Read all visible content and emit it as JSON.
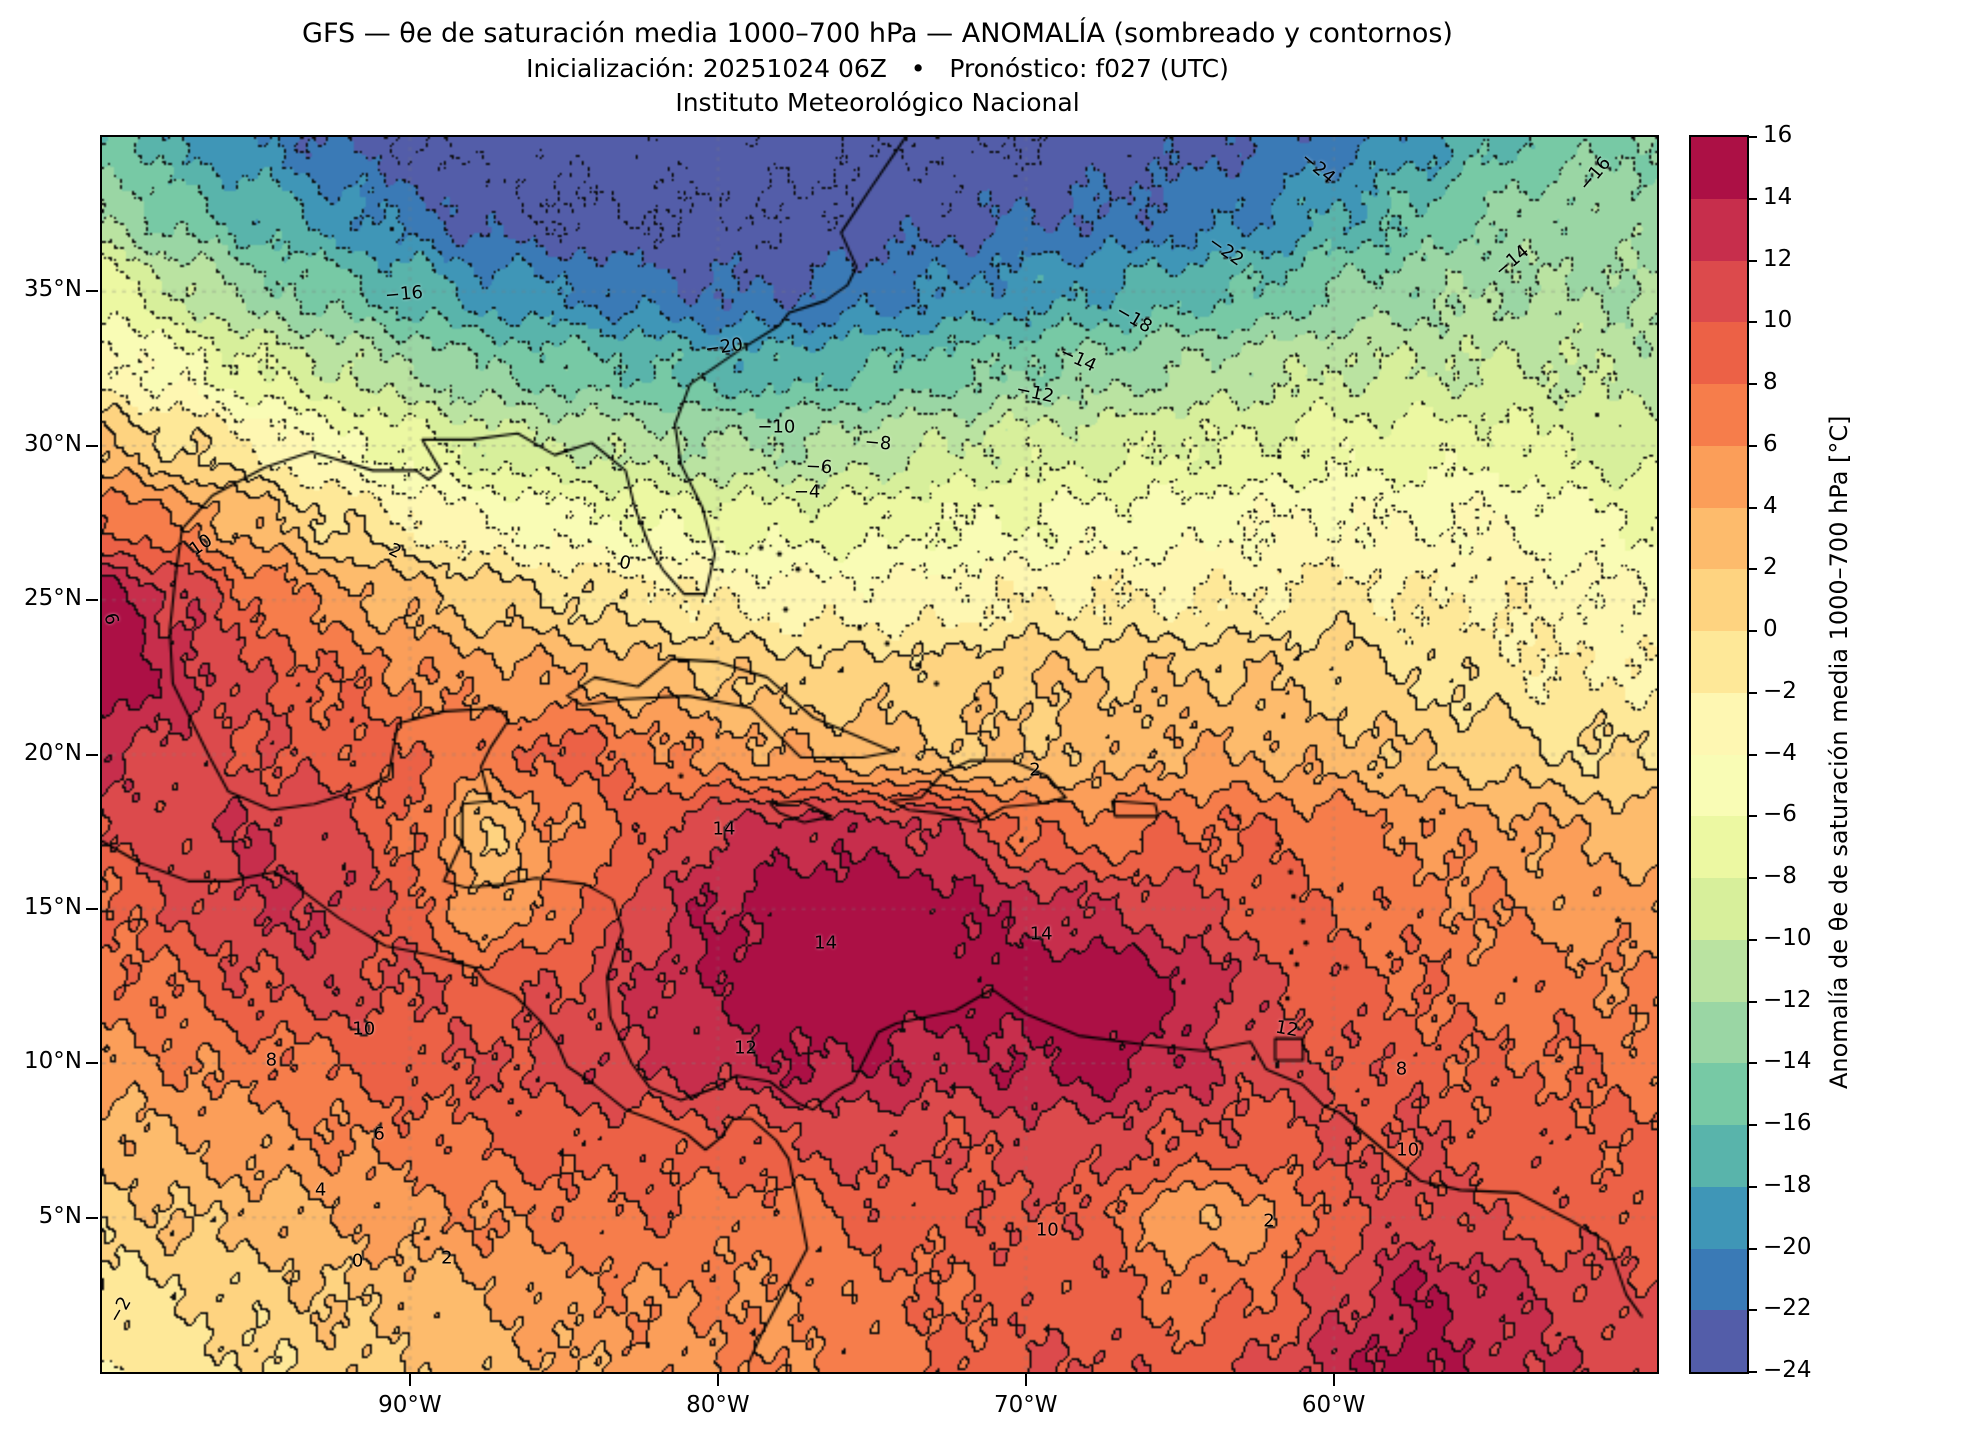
{
  "title": {
    "line1": "GFS — θe de saturación media 1000–700 hPa — ANOMALÍA (sombreado y contornos)",
    "line2": "Inicialización: 20251024 06Z   •   Pronóstico: f027 (UTC)",
    "line3": "Instituto Meteorológico Nacional"
  },
  "axes": {
    "lat_ticks": [
      {
        "value": 35,
        "label": "35°N"
      },
      {
        "value": 30,
        "label": "30°N"
      },
      {
        "value": 25,
        "label": "25°N"
      },
      {
        "value": 20,
        "label": "20°N"
      },
      {
        "value": 15,
        "label": "15°N"
      },
      {
        "value": 10,
        "label": "10°N"
      },
      {
        "value": 5,
        "label": "5°N"
      }
    ],
    "lon_ticks": [
      {
        "value": -90,
        "label": "90°W"
      },
      {
        "value": -80,
        "label": "80°W"
      },
      {
        "value": -70,
        "label": "70°W"
      },
      {
        "value": -60,
        "label": "60°W"
      }
    ]
  },
  "colorbar": {
    "label": "Anomalía de θe de saturación media 1000–700 hPa [°C]",
    "tick_labels": [
      "16",
      "14",
      "12",
      "10",
      "8",
      "6",
      "4",
      "2",
      "0",
      "−2",
      "−4",
      "−6",
      "−8",
      "−10",
      "−12",
      "−14",
      "−16",
      "−18",
      "−20",
      "−22",
      "−24"
    ],
    "levels": [
      -24,
      -22,
      -20,
      -18,
      -16,
      -14,
      -12,
      -10,
      -8,
      -6,
      -4,
      -2,
      0,
      2,
      4,
      6,
      8,
      10,
      12,
      14,
      16
    ],
    "bin_colors": [
      "#535da9",
      "#3a7ab6",
      "#3f96b7",
      "#59b4ab",
      "#77c9a5",
      "#9ad6a4",
      "#bae3a1",
      "#d7ef9b",
      "#ecf8a2",
      "#f9fcb5",
      "#fef7b2",
      "#fee898",
      "#fed380",
      "#fdbb6c",
      "#fb9e59",
      "#f67d4b",
      "#ec6146",
      "#dc4a4c",
      "#c72e4c",
      "#ac1045"
    ]
  },
  "chart_data": {
    "type": "heatmap",
    "title": "GFS — θe de saturación media 1000–700 hPa — ANOMALÍA (sombreado y contornos)",
    "units": "°C",
    "contour_interval": 2,
    "negative_contours_dotted": true,
    "lon_range": [
      -100,
      -49.5
    ],
    "lat_range": [
      0,
      40
    ],
    "grid_lon": [
      -100,
      -97.5,
      -95,
      -92.5,
      -90,
      -87.5,
      -85,
      -82.5,
      -80,
      -77.5,
      -75,
      -72.5,
      -70,
      -67.5,
      -65,
      -62.5,
      -60,
      -57.5,
      -55,
      -52.5,
      -50
    ],
    "grid_lat": [
      40,
      37.5,
      35,
      32.5,
      30,
      27.5,
      25,
      22.5,
      20,
      17.5,
      15,
      12.5,
      10,
      7.5,
      5,
      2.5,
      0
    ],
    "anomaly_grid": [
      [
        -15,
        -18,
        -20,
        -22,
        -24,
        -25,
        -25,
        -25,
        -25,
        -25,
        -24,
        -24,
        -24,
        -23,
        -23,
        -22,
        -21,
        -19,
        -17,
        -15,
        -14
      ],
      [
        -12,
        -15,
        -17,
        -19,
        -21,
        -23,
        -24,
        -24,
        -24,
        -24,
        -23,
        -23,
        -22,
        -22,
        -21,
        -20,
        -18,
        -16,
        -14,
        -13,
        -13
      ],
      [
        -7,
        -10,
        -13,
        -15,
        -17,
        -19,
        -20,
        -21,
        -22,
        -22,
        -21,
        -20,
        -19,
        -18,
        -17,
        -16,
        -14,
        -13,
        -12,
        -12,
        -12
      ],
      [
        -3,
        -5,
        -8,
        -10,
        -12,
        -14,
        -15,
        -16,
        -17,
        -17,
        -16,
        -15,
        -14,
        -13,
        -12,
        -11,
        -10,
        -10,
        -10,
        -10,
        -11
      ],
      [
        2,
        0,
        -2,
        -5,
        -7,
        -9,
        -10,
        -11,
        -12,
        -12,
        -11,
        -10,
        -9,
        -9,
        -8,
        -8,
        -7,
        -7,
        -7,
        -8,
        -9
      ],
      [
        8,
        6,
        3,
        0,
        -2,
        -4,
        -5,
        -6,
        -7,
        -7,
        -7,
        -6,
        -6,
        -5,
        -5,
        -4,
        -4,
        -4,
        -4,
        -5,
        -6
      ],
      [
        15,
        12,
        8,
        5,
        3,
        1,
        0,
        -1,
        -2,
        -3,
        -3,
        -3,
        -2,
        -2,
        -2,
        -2,
        -1,
        -2,
        -2,
        -3,
        -4
      ],
      [
        16,
        13,
        10,
        8,
        6,
        5,
        4,
        3,
        2,
        1,
        1,
        1,
        2,
        2,
        2,
        2,
        1,
        0,
        -1,
        -2,
        -2
      ],
      [
        13,
        11,
        10,
        9,
        8,
        7,
        9,
        7,
        5,
        4,
        3,
        2,
        2,
        3,
        4,
        4,
        3,
        2,
        1,
        0,
        0
      ],
      [
        10,
        11,
        12,
        11,
        8,
        2,
        6,
        9,
        12,
        13,
        13,
        12,
        8,
        7,
        8,
        8,
        7,
        6,
        5,
        4,
        3
      ],
      [
        8,
        10,
        12,
        12,
        9,
        4,
        7,
        11,
        14,
        15,
        16,
        15,
        13,
        12,
        11,
        9,
        8,
        7,
        6,
        5,
        5
      ],
      [
        7,
        8,
        10,
        11,
        10,
        9,
        10,
        12,
        14,
        16,
        16,
        15,
        15,
        16,
        14,
        11,
        9,
        8,
        7,
        7,
        6
      ],
      [
        5,
        6,
        7,
        8,
        9,
        10,
        11,
        12,
        13,
        14,
        14,
        13,
        14,
        15,
        13,
        11,
        10,
        9,
        8,
        8,
        7
      ],
      [
        3,
        4,
        5,
        6,
        7,
        8,
        9,
        9,
        9,
        10,
        11,
        10,
        11,
        11,
        10,
        9,
        10,
        10,
        9,
        9,
        8
      ],
      [
        1,
        2,
        3,
        4,
        5,
        6,
        7,
        8,
        7,
        7,
        9,
        9,
        10,
        9,
        4,
        5,
        9,
        11,
        10,
        9,
        9
      ],
      [
        -1,
        0,
        1,
        2,
        3,
        4,
        5,
        6,
        6,
        6,
        7,
        8,
        9,
        9,
        7,
        8,
        11,
        14,
        13,
        11,
        10
      ],
      [
        -2,
        -1,
        0,
        1,
        2,
        3,
        4,
        5,
        6,
        6,
        7,
        8,
        10,
        10,
        9,
        10,
        13,
        15,
        13,
        12,
        11
      ]
    ],
    "contour_labels": [
      {
        "text": "−24",
        "lon": -60.5,
        "lat": 39.0,
        "rot": 40
      },
      {
        "text": "−22",
        "lon": -63.5,
        "lat": 36.3,
        "rot": 35
      },
      {
        "text": "−18",
        "lon": -66.5,
        "lat": 34.1,
        "rot": 30
      },
      {
        "text": "−16",
        "lon": -90.2,
        "lat": 34.9,
        "rot": -5
      },
      {
        "text": "−16",
        "lon": -51.5,
        "lat": 38.8,
        "rot": -50
      },
      {
        "text": "−14",
        "lon": -68.3,
        "lat": 32.8,
        "rot": 25
      },
      {
        "text": "−14",
        "lon": -54.2,
        "lat": 36.0,
        "rot": -40
      },
      {
        "text": "−20",
        "lon": -79.8,
        "lat": 33.2,
        "rot": -8
      },
      {
        "text": "−12",
        "lon": -69.7,
        "lat": 31.7,
        "rot": 12
      },
      {
        "text": "−10",
        "lon": -78.1,
        "lat": 30.6,
        "rot": 0
      },
      {
        "text": "−8",
        "lon": -74.8,
        "lat": 30.1,
        "rot": 5
      },
      {
        "text": "−6",
        "lon": -76.7,
        "lat": 29.3,
        "rot": 3
      },
      {
        "text": "−4",
        "lon": -77.1,
        "lat": 28.5,
        "rot": 0
      },
      {
        "text": "0",
        "lon": -83.0,
        "lat": 26.2,
        "rot": 12
      },
      {
        "text": "2",
        "lon": -90.5,
        "lat": 26.6,
        "rot": 25
      },
      {
        "text": "10",
        "lon": -96.8,
        "lat": 26.8,
        "rot": -35
      },
      {
        "text": "6",
        "lon": -99.7,
        "lat": 24.4,
        "rot": 75
      },
      {
        "text": "2",
        "lon": -69.7,
        "lat": 19.5,
        "rot": 0
      },
      {
        "text": "14",
        "lon": -79.8,
        "lat": 17.6,
        "rot": 0
      },
      {
        "text": "14",
        "lon": -76.5,
        "lat": 13.9,
        "rot": 0
      },
      {
        "text": "14",
        "lon": -69.5,
        "lat": 14.2,
        "rot": 0
      },
      {
        "text": "12",
        "lon": -79.1,
        "lat": 10.5,
        "rot": 0
      },
      {
        "text": "12",
        "lon": -61.5,
        "lat": 11.1,
        "rot": 10
      },
      {
        "text": "10",
        "lon": -91.5,
        "lat": 11.1,
        "rot": 0
      },
      {
        "text": "8",
        "lon": -94.5,
        "lat": 10.1,
        "rot": 0
      },
      {
        "text": "6",
        "lon": -91.0,
        "lat": 7.7,
        "rot": 0
      },
      {
        "text": "4",
        "lon": -92.9,
        "lat": 5.9,
        "rot": 0
      },
      {
        "text": "2",
        "lon": -88.8,
        "lat": 3.7,
        "rot": 0
      },
      {
        "text": "0",
        "lon": -91.7,
        "lat": 3.6,
        "rot": 0
      },
      {
        "text": "−2",
        "lon": -99.4,
        "lat": 2.0,
        "rot": -60
      },
      {
        "text": "10",
        "lon": -69.3,
        "lat": 4.6,
        "rot": 0
      },
      {
        "text": "10",
        "lon": -57.6,
        "lat": 7.2,
        "rot": 0
      },
      {
        "text": "8",
        "lon": -57.8,
        "lat": 9.8,
        "rot": 0
      },
      {
        "text": "2",
        "lon": -62.1,
        "lat": 4.9,
        "rot": 0
      }
    ]
  }
}
